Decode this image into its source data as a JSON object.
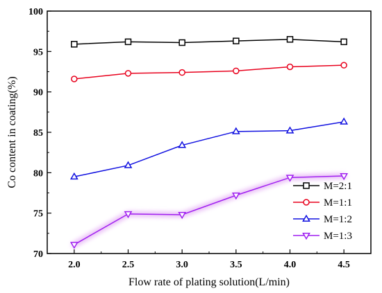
{
  "chart_data": {
    "type": "line",
    "xlabel": "Flow rate of plating solution(L/min)",
    "ylabel": "Co content in coating(%)",
    "xlim": [
      1.75,
      4.75
    ],
    "ylim": [
      70,
      100
    ],
    "x": [
      2.0,
      2.5,
      3.0,
      3.5,
      4.0,
      4.5
    ],
    "x_tick_labels": [
      "2.0",
      "2.5",
      "3.0",
      "3.5",
      "4.0",
      "4.5"
    ],
    "y_ticks": [
      70,
      75,
      80,
      85,
      90,
      95,
      100
    ],
    "y_tick_labels": [
      "70",
      "75",
      "80",
      "85",
      "90",
      "95",
      "100"
    ],
    "grid": false,
    "legend_position": "bottom-right",
    "series": [
      {
        "name": "M=2:1",
        "marker": "square",
        "color": "#000000",
        "values": [
          95.9,
          96.2,
          96.1,
          96.3,
          96.5,
          96.2
        ]
      },
      {
        "name": "M=1:1",
        "marker": "circle",
        "color": "#e8001c",
        "values": [
          91.6,
          92.3,
          92.4,
          92.6,
          93.1,
          93.3
        ]
      },
      {
        "name": "M=1:2",
        "marker": "triangle-up",
        "color": "#1010e0",
        "values": [
          79.5,
          80.9,
          83.4,
          85.1,
          85.2,
          86.3
        ]
      },
      {
        "name": "M=1:3",
        "marker": "triangle-down",
        "color": "#a020f0",
        "values": [
          71.1,
          74.9,
          74.8,
          77.2,
          79.4,
          79.6
        ]
      }
    ]
  }
}
